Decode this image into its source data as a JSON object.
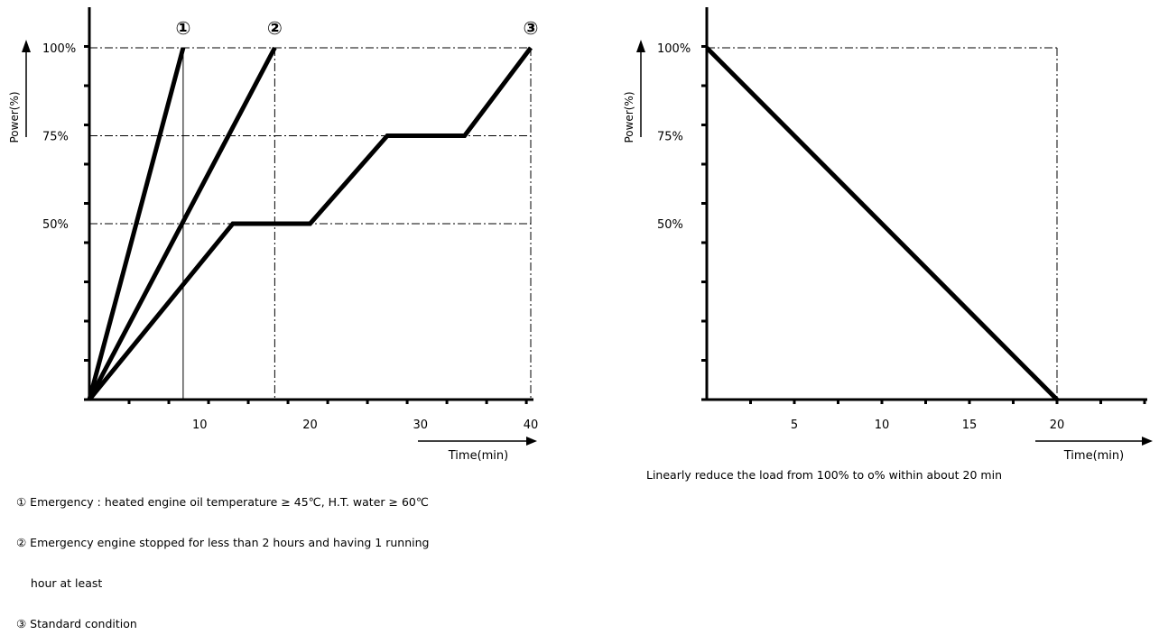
{
  "chart_data": [
    {
      "type": "line",
      "ylabel": "Power(%)",
      "xlabel": "Time(min)",
      "xlim": [
        0,
        40
      ],
      "ylim": [
        0,
        100
      ],
      "y_tick_labels": [
        "100%",
        "75%",
        "50%"
      ],
      "x_tick_labels": [
        "10",
        "20",
        "30",
        "40"
      ],
      "grid": "dash-dot reference lines",
      "series": [
        {
          "name": "①",
          "x": [
            0,
            8.5
          ],
          "y": [
            0,
            100
          ]
        },
        {
          "name": "②",
          "x": [
            0,
            16.8
          ],
          "y": [
            0,
            100
          ]
        },
        {
          "name": "③",
          "x": [
            0,
            13,
            20,
            27,
            34,
            40
          ],
          "y": [
            0,
            50,
            50,
            75,
            75,
            100
          ]
        }
      ],
      "notes": [
        "① Emergency : heated engine oil temperature ≥ 45℃, H.T. water ≥ 60℃",
        "② Emergency engine stopped for less than 2 hours and having 1 running",
        "    hour at least",
        "③ Standard condition"
      ]
    },
    {
      "type": "line",
      "ylabel": "Power(%)",
      "xlabel": "Time(min)",
      "xlim": [
        0,
        20
      ],
      "ylim": [
        0,
        100
      ],
      "y_tick_labels": [
        "100%",
        "75%",
        "50%"
      ],
      "x_tick_labels": [
        "5",
        "10",
        "15",
        "20"
      ],
      "series": [
        {
          "x": [
            0,
            20
          ],
          "y": [
            100,
            0
          ]
        }
      ],
      "caption": "Linearly reduce the load from 100% to o% within about 20 min"
    }
  ]
}
